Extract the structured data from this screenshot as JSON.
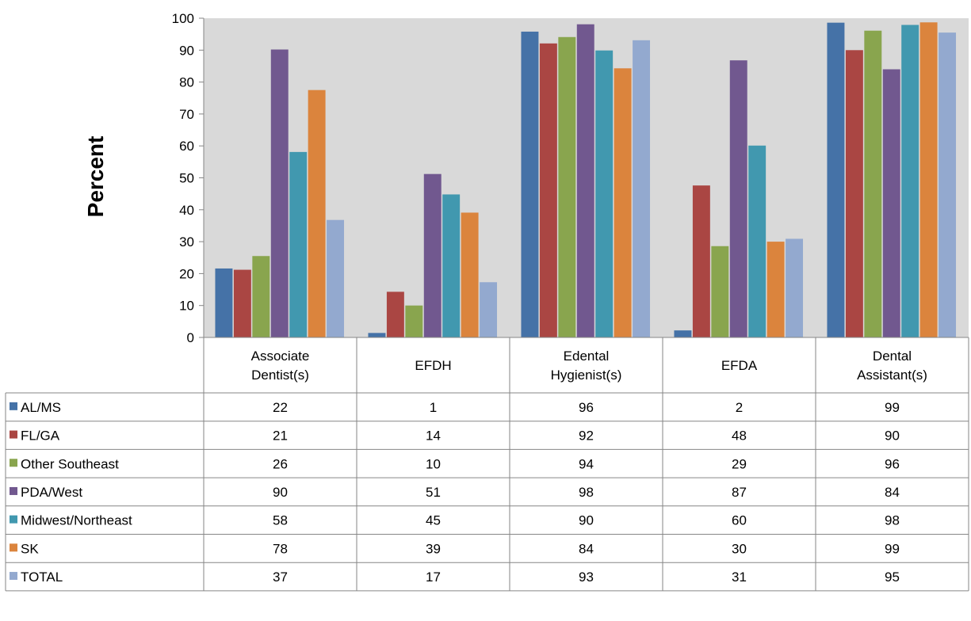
{
  "chart_data": {
    "type": "bar",
    "title": "",
    "xlabel": "",
    "ylabel": "Percent",
    "ylim": [
      0,
      100
    ],
    "yticks": [
      0,
      10,
      20,
      30,
      40,
      50,
      60,
      70,
      80,
      90,
      100
    ],
    "categories": [
      [
        "Associate",
        "Dentist(s)"
      ],
      [
        "EFDH"
      ],
      [
        "Edental",
        "Hygienist(s)"
      ],
      [
        "EFDA"
      ],
      [
        "Dental",
        "Assistant(s)"
      ]
    ],
    "plot_background": "#d9d9d9",
    "grid": false,
    "legend": "data-table",
    "series": [
      {
        "name": "AL/MS",
        "color": "#4572a7",
        "values": [
          21.6,
          1.4,
          95.8,
          2.2,
          98.6
        ],
        "labels": [
          "22",
          "1",
          "96",
          "2",
          "99"
        ]
      },
      {
        "name": "FL/GA",
        "color": "#aa4643",
        "values": [
          21.2,
          14.3,
          92.1,
          47.6,
          90.0
        ],
        "labels": [
          "21",
          "14",
          "92",
          "48",
          "90"
        ]
      },
      {
        "name": "Other Southeast",
        "color": "#89a54e",
        "values": [
          25.5,
          10.0,
          94.1,
          28.6,
          96.1
        ],
        "labels": [
          "26",
          "10",
          "94",
          "29",
          "96"
        ]
      },
      {
        "name": "PDA/West",
        "color": "#71588f",
        "values": [
          90.2,
          51.2,
          98.1,
          86.8,
          84.0
        ],
        "labels": [
          "90",
          "51",
          "98",
          "87",
          "84"
        ]
      },
      {
        "name": "Midwest/Northeast",
        "color": "#4198af",
        "values": [
          58.1,
          44.8,
          89.9,
          60.1,
          97.9
        ],
        "labels": [
          "58",
          "45",
          "90",
          "60",
          "98"
        ]
      },
      {
        "name": "SK",
        "color": "#db843d",
        "values": [
          77.5,
          39.1,
          84.3,
          30.0,
          98.7
        ],
        "labels": [
          "78",
          "39",
          "84",
          "30",
          "99"
        ]
      },
      {
        "name": "TOTAL",
        "color": "#93a9cf",
        "values": [
          36.8,
          17.3,
          93.1,
          30.9,
          95.5
        ],
        "labels": [
          "37",
          "17",
          "93",
          "31",
          "95"
        ]
      }
    ]
  }
}
